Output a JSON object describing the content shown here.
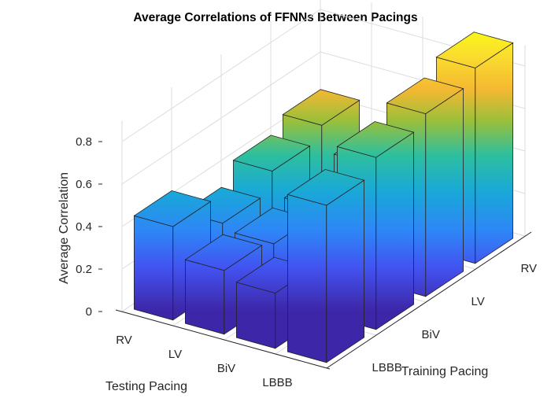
{
  "chart_data": {
    "type": "bar3d",
    "title": "Average Correlations of FFNNs Between Pacings",
    "xlabel": "Testing Pacing",
    "ylabel": "Training Pacing",
    "zlabel": "Average Correlation",
    "testing_categories": [
      "RV",
      "LV",
      "BiV",
      "LBBB"
    ],
    "training_categories": [
      "LBBB",
      "BiV",
      "LV",
      "RV"
    ],
    "zlim": [
      0,
      0.9
    ],
    "zticks": [
      "0",
      "0.2",
      "0.4",
      "0.6",
      "0.8"
    ],
    "grid": true,
    "colormap": "parula",
    "values": [
      {
        "testing": "RV",
        "training": "RV",
        "value": 0.45
      },
      {
        "testing": "RV",
        "training": "LV",
        "value": 0.39
      },
      {
        "testing": "RV",
        "training": "BiV",
        "value": 0.3
      },
      {
        "testing": "RV",
        "training": "LBBB",
        "value": 0.44
      },
      {
        "testing": "LV",
        "training": "RV",
        "value": 0.33
      },
      {
        "testing": "LV",
        "training": "LV",
        "value": 0.28
      },
      {
        "testing": "LV",
        "training": "BiV",
        "value": 0.27
      },
      {
        "testing": "LV",
        "training": "LBBB",
        "value": 0.3
      },
      {
        "testing": "BiV",
        "training": "RV",
        "value": 0.24
      },
      {
        "testing": "BiV",
        "training": "LV",
        "value": 0.22
      },
      {
        "testing": "BiV",
        "training": "BiV",
        "value": 0.2
      },
      {
        "testing": "BiV",
        "training": "LBBB",
        "value": 0.26
      },
      {
        "testing": "LBBB",
        "training": "RV",
        "value": 0.92
      },
      {
        "testing": "LBBB",
        "training": "LV",
        "value": 0.86
      },
      {
        "testing": "LBBB",
        "training": "BiV",
        "value": 0.81
      },
      {
        "testing": "LBBB",
        "training": "LBBB",
        "value": 0.74
      }
    ]
  }
}
